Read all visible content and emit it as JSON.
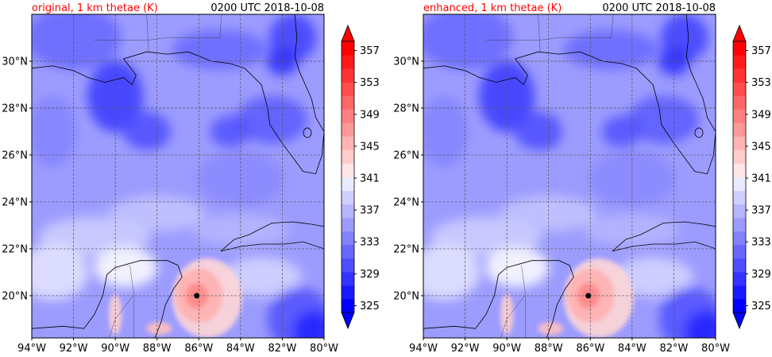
{
  "timestamp": "0200 UTC 2018-10-08",
  "panels": [
    {
      "id": "original",
      "title": "original, 1 km thetae (K)",
      "title_color": "#ff0000"
    },
    {
      "id": "enhanced",
      "title": "enhanced, 1 km thetae (K)",
      "title_color": "#ff0000"
    }
  ],
  "map": {
    "lon_range": [
      -94,
      -80
    ],
    "lat_range": [
      18.2,
      32
    ],
    "lon_ticks": [
      -94,
      -92,
      -90,
      -88,
      -86,
      -84,
      -82,
      -80
    ],
    "lon_tick_labels": [
      "94°W",
      "92°W",
      "90°W",
      "88°W",
      "86°W",
      "84°W",
      "82°W",
      "80°W"
    ],
    "lat_ticks": [
      20,
      22,
      24,
      26,
      28,
      30
    ],
    "lat_tick_labels": [
      "20°N",
      "22°N",
      "24°N",
      "26°N",
      "28°N",
      "30°N"
    ],
    "grid": true,
    "storm_marker": {
      "lon": -86.1,
      "lat": 20.0
    }
  },
  "colorbar": {
    "ticks": [
      325,
      329,
      333,
      337,
      341,
      345,
      349,
      353,
      357
    ],
    "tick_labels": [
      "325",
      "329",
      "333",
      "337",
      "341",
      "345",
      "349",
      "353",
      "357"
    ],
    "min": 325,
    "max": 359,
    "step": 2,
    "extend": "both",
    "colors": [
      "#0000ff",
      "#1a1aff",
      "#3434ff",
      "#4e4eff",
      "#6868ff",
      "#8282ff",
      "#9c9cff",
      "#b6b6ff",
      "#d0d0ff",
      "#eaeaff",
      "#ffe6e6",
      "#ffcccc",
      "#ffb3b3",
      "#ff9999",
      "#ff8080",
      "#ff6666",
      "#ff4d4d",
      "#ff3333",
      "#ff1a1a",
      "#ff0000"
    ]
  }
}
